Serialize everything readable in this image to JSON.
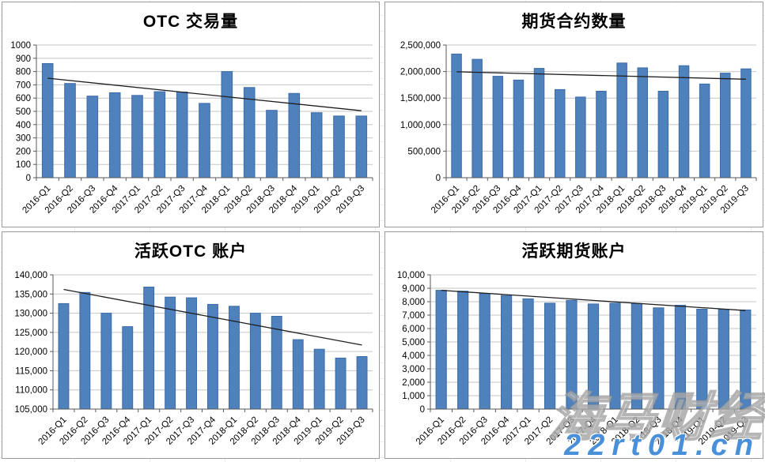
{
  "colors": {
    "bar": "#4f81bd",
    "bar_border": "#3c6ca8",
    "grid": "#c6c6c6",
    "axis": "#595959",
    "trend": "#1f1f1f",
    "panel_border": "#9a9a9a",
    "title": "#000000",
    "watermark_url": "#4a90d9"
  },
  "watermark": {
    "brand": "海马财经",
    "url": "22rt01.cn"
  },
  "chart_data": [
    {
      "type": "bar",
      "title": "OTC 交易量",
      "categories": [
        "2016-Q1",
        "2016-Q2",
        "2016-Q3",
        "2016-Q4",
        "2017-Q1",
        "2017-Q2",
        "2017-Q3",
        "2017-Q4",
        "2018-Q1",
        "2018-Q2",
        "2018-Q3",
        "2018-Q4",
        "2019-Q1",
        "2019-Q2",
        "2019-Q3"
      ],
      "values": [
        860,
        710,
        615,
        640,
        620,
        648,
        645,
        560,
        800,
        680,
        508,
        635,
        490,
        465,
        465
      ],
      "trendline": [
        750,
        505
      ],
      "ylim": [
        0,
        1000
      ],
      "ytick_step": 100,
      "ytick_format": "plain",
      "grid": true,
      "legend": false,
      "xlabel": "",
      "ylabel": ""
    },
    {
      "type": "bar",
      "title": "期货合约数量",
      "categories": [
        "2016-Q1",
        "2016-Q2",
        "2016-Q3",
        "2016-Q4",
        "2017-Q1",
        "2017-Q2",
        "2017-Q3",
        "2017-Q4",
        "2018-Q1",
        "2018-Q2",
        "2018-Q3",
        "2018-Q4",
        "2019-Q1",
        "2019-Q2",
        "2019-Q3"
      ],
      "values": [
        2330000,
        2230000,
        1910000,
        1840000,
        2060000,
        1660000,
        1520000,
        1630000,
        2160000,
        2070000,
        1630000,
        2110000,
        1765000,
        1970000,
        2050000
      ],
      "trendline": [
        1995000,
        1855000
      ],
      "ylim": [
        0,
        2500000
      ],
      "ytick_step": 500000,
      "ytick_format": "comma",
      "grid": true,
      "legend": false,
      "xlabel": "",
      "ylabel": ""
    },
    {
      "type": "bar",
      "title": "活跃OTC 账户",
      "categories": [
        "2016-Q1",
        "2016-Q2",
        "2016-Q3",
        "2016-Q4",
        "2017-Q1",
        "2017-Q2",
        "2017-Q3",
        "2017-Q4",
        "2018-Q1",
        "2018-Q2",
        "2018-Q3",
        "2018-Q4",
        "2019-Q1",
        "2019-Q2",
        "2019-Q3"
      ],
      "values": [
        132500,
        135400,
        130000,
        126500,
        136800,
        134200,
        134000,
        132300,
        131800,
        130000,
        129200,
        123100,
        120600,
        118300,
        118700
      ],
      "trendline": [
        136200,
        121700
      ],
      "ylim": [
        105000,
        140000
      ],
      "ytick_step": 5000,
      "ytick_format": "comma",
      "grid": true,
      "legend": false,
      "xlabel": "",
      "ylabel": ""
    },
    {
      "type": "bar",
      "title": "活跃期货账户",
      "categories": [
        "2016-Q1",
        "2016-Q2",
        "2016-Q3",
        "2016-Q4",
        "2017-Q1",
        "2017-Q2",
        "2017-Q3",
        "2017-Q4",
        "2018-Q1",
        "2018-Q2",
        "2018-Q3",
        "2018-Q4",
        "2019-Q1",
        "2019-Q2",
        "2019-Q3"
      ],
      "values": [
        8850,
        8780,
        8600,
        8450,
        8210,
        7890,
        8100,
        7830,
        7890,
        7860,
        7540,
        7730,
        7440,
        7430,
        7380
      ],
      "trendline": [
        8850,
        7340
      ],
      "ylim": [
        0,
        10000
      ],
      "ytick_step": 1000,
      "ytick_format": "comma",
      "grid": true,
      "legend": false,
      "xlabel": "",
      "ylabel": ""
    }
  ]
}
